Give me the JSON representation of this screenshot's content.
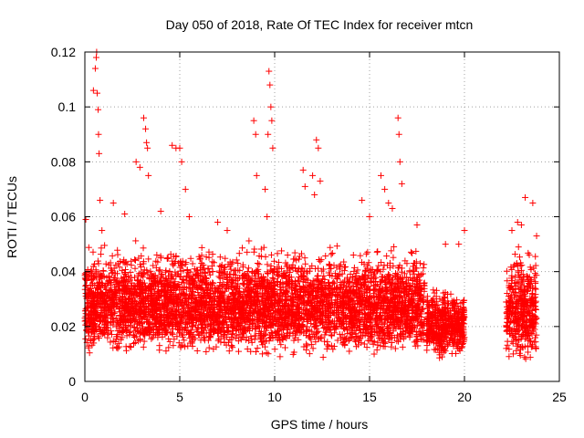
{
  "chart_data": {
    "type": "scatter",
    "title": "Day 050 of 2018, Rate Of TEC Index for receiver mtcn",
    "xlabel": "GPS time / hours",
    "ylabel": "ROTI / TECUs",
    "xlim": [
      0,
      25
    ],
    "ylim": [
      0,
      0.12
    ],
    "x_ticks": [
      0,
      5,
      10,
      15,
      20,
      25
    ],
    "y_ticks": [
      0,
      0.02,
      0.04,
      0.06,
      0.08,
      0.1,
      0.12
    ],
    "x_tick_labels": [
      "0",
      "5",
      "10",
      "15",
      "20",
      "25"
    ],
    "y_tick_labels": [
      "0",
      "0.02",
      "0.04",
      "0.06",
      "0.08",
      "0.1",
      "0.12"
    ],
    "grid": true,
    "marker": "+",
    "color": "#ff0000",
    "series": [
      {
        "points": [
          [
            0.05,
            0.059
          ],
          [
            0.3,
            0.04
          ],
          [
            0.45,
            0.106
          ],
          [
            0.55,
            0.114
          ],
          [
            0.6,
            0.118
          ],
          [
            0.62,
            0.12
          ],
          [
            0.65,
            0.105
          ],
          [
            0.7,
            0.099
          ],
          [
            0.72,
            0.09
          ],
          [
            0.75,
            0.083
          ],
          [
            0.8,
            0.066
          ],
          [
            0.9,
            0.055
          ],
          [
            1.5,
            0.065
          ],
          [
            2.1,
            0.061
          ],
          [
            2.7,
            0.08
          ],
          [
            2.9,
            0.078
          ],
          [
            3.1,
            0.096
          ],
          [
            3.2,
            0.092
          ],
          [
            3.25,
            0.087
          ],
          [
            3.3,
            0.085
          ],
          [
            3.35,
            0.075
          ],
          [
            4.0,
            0.062
          ],
          [
            4.6,
            0.086
          ],
          [
            4.8,
            0.085
          ],
          [
            5.0,
            0.085
          ],
          [
            5.1,
            0.08
          ],
          [
            5.3,
            0.07
          ],
          [
            5.5,
            0.06
          ],
          [
            7.0,
            0.058
          ],
          [
            7.5,
            0.055
          ],
          [
            8.9,
            0.095
          ],
          [
            9.0,
            0.09
          ],
          [
            9.05,
            0.075
          ],
          [
            9.5,
            0.07
          ],
          [
            9.6,
            0.06
          ],
          [
            9.65,
            0.09
          ],
          [
            9.7,
            0.113
          ],
          [
            9.75,
            0.108
          ],
          [
            9.8,
            0.1
          ],
          [
            9.85,
            0.095
          ],
          [
            9.9,
            0.085
          ],
          [
            11.5,
            0.077
          ],
          [
            11.6,
            0.071
          ],
          [
            12.0,
            0.075
          ],
          [
            12.1,
            0.068
          ],
          [
            12.2,
            0.088
          ],
          [
            12.3,
            0.085
          ],
          [
            12.4,
            0.073
          ],
          [
            14.6,
            0.066
          ],
          [
            15.0,
            0.06
          ],
          [
            15.6,
            0.075
          ],
          [
            15.8,
            0.07
          ],
          [
            16.0,
            0.065
          ],
          [
            16.2,
            0.063
          ],
          [
            16.5,
            0.096
          ],
          [
            16.55,
            0.09
          ],
          [
            16.6,
            0.08
          ],
          [
            16.7,
            0.072
          ],
          [
            17.5,
            0.057
          ],
          [
            19.0,
            0.05
          ],
          [
            19.7,
            0.05
          ],
          [
            20.0,
            0.055
          ],
          [
            22.5,
            0.055
          ],
          [
            22.8,
            0.058
          ],
          [
            23.0,
            0.057
          ],
          [
            23.2,
            0.067
          ],
          [
            23.6,
            0.065
          ],
          [
            23.8,
            0.053
          ]
        ]
      }
    ],
    "dense_bands": [
      {
        "x_range": [
          0,
          17.9
        ],
        "y_range": [
          0.008,
          0.05
        ]
      },
      {
        "x_range": [
          18.0,
          20.0
        ],
        "y_range": [
          0.008,
          0.035
        ]
      },
      {
        "x_range": [
          22.2,
          23.8
        ],
        "y_range": [
          0.005,
          0.05
        ]
      }
    ]
  }
}
